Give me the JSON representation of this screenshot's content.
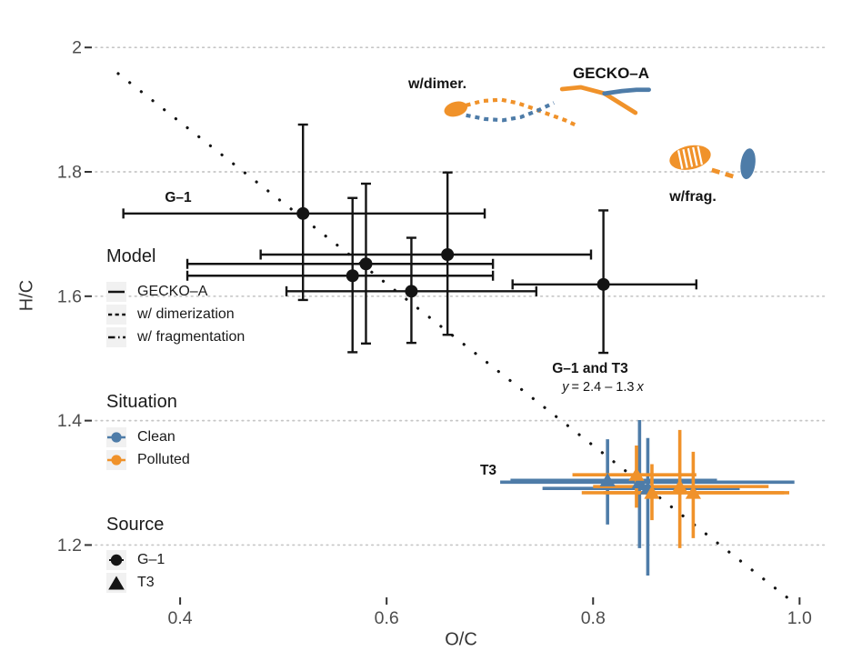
{
  "figure": {
    "x_axis": {
      "title": "O/C",
      "ticks": [
        "0.4",
        "0.6",
        "0.8",
        "1.0"
      ],
      "tick_values": [
        0.4,
        0.6,
        0.8,
        1.0
      ]
    },
    "y_axis": {
      "title": "H/C",
      "ticks": [
        "2",
        "1.8",
        "1.6",
        "1.4",
        "1.2"
      ],
      "tick_values": [
        2.0,
        1.8,
        1.6,
        1.4,
        1.2
      ]
    }
  },
  "colors": {
    "clean": "#4E7CA8",
    "polluted": "#F0922A",
    "data_black": "#141414",
    "grid": "#C6C6C6",
    "tick_text": "#4D4D4D",
    "axis_title": "#333333"
  },
  "legend": {
    "model": {
      "title": "Model",
      "items": [
        {
          "label": "GECKO–A",
          "style": "solid"
        },
        {
          "label": "w/ dimerization",
          "style": "dashed"
        },
        {
          "label": "w/ fragmentation",
          "style": "longdash"
        }
      ]
    },
    "situation": {
      "title": "Situation",
      "items": [
        {
          "label": "Clean",
          "color_key": "clean"
        },
        {
          "label": "Polluted",
          "color_key": "polluted"
        }
      ]
    },
    "source": {
      "title": "Source",
      "items": [
        {
          "label": "G–1",
          "marker": "circle"
        },
        {
          "label": "T3",
          "marker": "triangle"
        }
      ]
    }
  },
  "annotations": {
    "g1": "G–1",
    "gecko": "GECKO–A",
    "dimer": "w/dimer.",
    "frag": "w/frag.",
    "g1_t3": "G–1 and T3",
    "t3": "T3",
    "equation": {
      "var_y": "y",
      "body": "= 2.4 – 1.3",
      "var_x": "x"
    }
  },
  "chart_data": {
    "type": "scatter",
    "title": "",
    "xlabel": "O/C",
    "ylabel": "H/C",
    "xlim": [
      0.318,
      1.027
    ],
    "ylim": [
      1.11,
      2.05
    ],
    "x_ticks": [
      0.4,
      0.6,
      0.8,
      1.0
    ],
    "y_ticks": [
      1.2,
      1.4,
      1.6,
      1.8,
      2.0
    ],
    "grid": "dotted horizontal gridlines at y ticks",
    "legend_position": "inside-left",
    "regression": {
      "label": "G–1 and T3",
      "equation": "y = 2.4 - 1.3 x",
      "intercept": 2.4,
      "slope": -1.3,
      "x_start": 0.34,
      "x_end": 0.988,
      "style": "dotted",
      "color_key": "data_black"
    },
    "series": [
      {
        "name": "G–1 observations",
        "source": "G–1",
        "marker": "circle",
        "color_key": "data_black",
        "caps": true,
        "points": [
          {
            "x": 0.519,
            "y": 1.733,
            "x_lo": 0.345,
            "x_hi": 0.695,
            "y_lo": 1.594,
            "y_hi": 1.876
          },
          {
            "x": 0.58,
            "y": 1.652,
            "x_lo": 0.407,
            "x_hi": 0.703,
            "y_lo": 1.524,
            "y_hi": 1.781
          },
          {
            "x": 0.567,
            "y": 1.633,
            "x_lo": 0.407,
            "x_hi": 0.703,
            "y_lo": 1.51,
            "y_hi": 1.758
          },
          {
            "x": 0.624,
            "y": 1.608,
            "x_lo": 0.503,
            "x_hi": 0.745,
            "y_lo": 1.525,
            "y_hi": 1.694
          },
          {
            "x": 0.659,
            "y": 1.667,
            "x_lo": 0.478,
            "x_hi": 0.798,
            "y_lo": 1.538,
            "y_hi": 1.799
          },
          {
            "x": 0.81,
            "y": 1.619,
            "x_lo": 0.722,
            "x_hi": 0.9,
            "y_lo": 1.509,
            "y_hi": 1.738
          }
        ]
      },
      {
        "name": "T3 Clean observations",
        "source": "T3",
        "situation": "Clean",
        "marker": "triangle",
        "color_key": "clean",
        "caps": false,
        "points": [
          {
            "x": 0.814,
            "y": 1.304,
            "x_lo": 0.72,
            "x_hi": 0.92,
            "y_lo": 1.233,
            "y_hi": 1.37
          },
          {
            "x": 0.845,
            "y": 1.301,
            "x_lo": 0.71,
            "x_hi": 0.995,
            "y_lo": 1.195,
            "y_hi": 1.401
          },
          {
            "x": 0.853,
            "y": 1.291,
            "x_lo": 0.751,
            "x_hi": 0.942,
            "y_lo": 1.151,
            "y_hi": 1.372
          }
        ]
      },
      {
        "name": "T3 Polluted observations",
        "source": "T3",
        "situation": "Polluted",
        "marker": "triangle",
        "color_key": "polluted",
        "caps": false,
        "points": [
          {
            "x": 0.842,
            "y": 1.313,
            "x_lo": 0.78,
            "x_hi": 0.9,
            "y_lo": 1.26,
            "y_hi": 1.36
          },
          {
            "x": 0.857,
            "y": 1.284,
            "x_lo": 0.789,
            "x_hi": 0.99,
            "y_lo": 1.24,
            "y_hi": 1.33
          },
          {
            "x": 0.884,
            "y": 1.294,
            "x_lo": 0.8,
            "x_hi": 0.97,
            "y_lo": 1.195,
            "y_hi": 1.385
          },
          {
            "x": 0.897,
            "y": 1.284,
            "x_lo": 0.81,
            "x_hi": 0.985,
            "y_lo": 1.211,
            "y_hi": 1.35
          }
        ]
      }
    ],
    "trajectories": [
      {
        "name": "GECKO–A",
        "situation": "Polluted",
        "style": "solid",
        "color_key": "polluted",
        "points": [
          [
            0.77,
            1.933
          ],
          [
            0.788,
            1.936
          ],
          [
            0.811,
            1.926
          ],
          [
            0.841,
            1.895
          ]
        ]
      },
      {
        "name": "GECKO–A",
        "situation": "Clean",
        "style": "solid",
        "color_key": "clean",
        "points": [
          [
            0.811,
            1.926
          ],
          [
            0.828,
            1.93
          ],
          [
            0.842,
            1.932
          ],
          [
            0.854,
            1.932
          ]
        ]
      },
      {
        "name": "w/ dimerization",
        "situation": "Polluted",
        "style": "dashed",
        "color_key": "polluted",
        "points": [
          [
            0.677,
            1.907
          ],
          [
            0.693,
            1.914
          ],
          [
            0.711,
            1.916
          ],
          [
            0.726,
            1.911
          ],
          [
            0.742,
            1.902
          ],
          [
            0.758,
            1.892
          ],
          [
            0.773,
            1.883
          ],
          [
            0.786,
            1.873
          ]
        ],
        "blob": {
          "x": 0.667,
          "y": 1.901,
          "rx": 13,
          "ry": 8,
          "angle": -15
        }
      },
      {
        "name": "w/ dimerization",
        "situation": "Clean",
        "style": "dashed",
        "color_key": "clean",
        "points": [
          [
            0.677,
            1.891
          ],
          [
            0.695,
            1.885
          ],
          [
            0.713,
            1.883
          ],
          [
            0.73,
            1.888
          ],
          [
            0.747,
            1.899
          ],
          [
            0.762,
            1.911
          ]
        ]
      },
      {
        "name": "w/ fragmentation",
        "situation": "Polluted",
        "style": "longdash",
        "color_key": "polluted",
        "points": [
          [
            0.915,
            1.803
          ],
          [
            0.941,
            1.79
          ]
        ],
        "blob": {
          "x": 0.894,
          "y": 1.823,
          "rx": 23,
          "ry": 13,
          "angle": -12,
          "stripes": true
        }
      },
      {
        "name": "w/ fragmentation",
        "situation": "Clean",
        "style": "longdash",
        "color_key": "clean",
        "points": [],
        "blob": {
          "x": 0.95,
          "y": 1.813,
          "rx": 8,
          "ry": 17,
          "angle": 8
        }
      }
    ]
  }
}
